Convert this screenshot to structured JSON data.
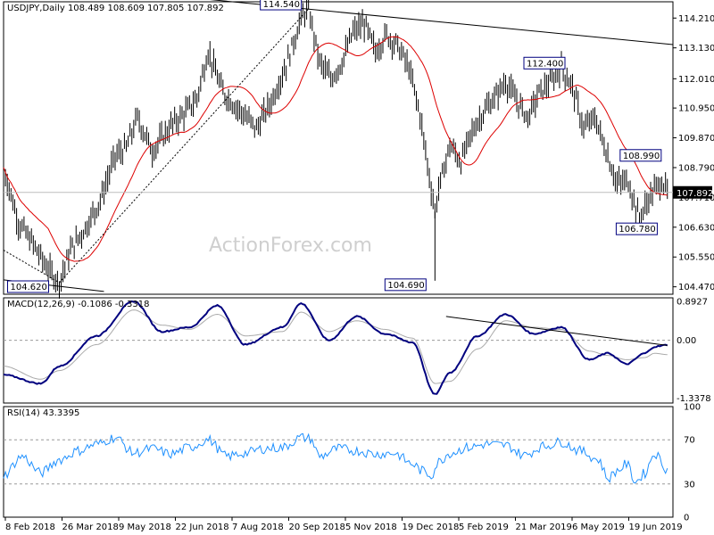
{
  "symbol": "USDJPY",
  "timeframe": "Daily",
  "header_quote": "108.489 108.609 107.805 107.892",
  "watermark": "ActionForex.com",
  "colors": {
    "price": "#000000",
    "ma": "#dd0000",
    "macd": "#00007f",
    "signal": "#aaaaaa",
    "rsi": "#1e90ff",
    "trend": "#000000"
  },
  "chart_data": [
    {
      "type": "candlestick",
      "title": "USDJPY,Daily  108.489 108.609 107.805 107.892",
      "overlay": "moving average (red)",
      "ylim": [
        104.2,
        114.8
      ],
      "y_ticks": [
        "114.210",
        "113.130",
        "112.010",
        "110.950",
        "109.870",
        "108.790",
        "107.710",
        "106.630",
        "105.550",
        "104.470"
      ],
      "x_labels": [
        "8 Feb 2018",
        "26 Mar 2018",
        "9 May 2018",
        "22 Jun 2018",
        "7 Aug 2018",
        "20 Sep 2018",
        "5 Nov 2018",
        "19 Dec 2018",
        "5 Feb 2019",
        "21 Mar 2019",
        "6 May 2019",
        "19 Jun 2019"
      ],
      "last_price": "107.892",
      "price_path": [
        {
          "d": 0,
          "p": 108.8
        },
        {
          "d": 8,
          "p": 106.8
        },
        {
          "d": 16,
          "p": 106.0
        },
        {
          "d": 24,
          "p": 105.1
        },
        {
          "d": 30,
          "p": 104.62
        },
        {
          "d": 36,
          "p": 105.8
        },
        {
          "d": 44,
          "p": 106.6
        },
        {
          "d": 52,
          "p": 107.6
        },
        {
          "d": 60,
          "p": 109.2
        },
        {
          "d": 66,
          "p": 109.5
        },
        {
          "d": 72,
          "p": 110.6
        },
        {
          "d": 80,
          "p": 109.4
        },
        {
          "d": 90,
          "p": 110.3
        },
        {
          "d": 98,
          "p": 110.8
        },
        {
          "d": 104,
          "p": 111.3
        },
        {
          "d": 110,
          "p": 113.0
        },
        {
          "d": 118,
          "p": 111.5
        },
        {
          "d": 128,
          "p": 110.8
        },
        {
          "d": 136,
          "p": 110.2
        },
        {
          "d": 144,
          "p": 111.2
        },
        {
          "d": 152,
          "p": 112.5
        },
        {
          "d": 160,
          "p": 114.2
        },
        {
          "d": 164,
          "p": 114.54
        },
        {
          "d": 170,
          "p": 112.6
        },
        {
          "d": 176,
          "p": 112.0
        },
        {
          "d": 182,
          "p": 112.6
        },
        {
          "d": 188,
          "p": 113.7
        },
        {
          "d": 194,
          "p": 114.0
        },
        {
          "d": 200,
          "p": 113.0
        },
        {
          "d": 206,
          "p": 113.6
        },
        {
          "d": 212,
          "p": 113.2
        },
        {
          "d": 218,
          "p": 112.4
        },
        {
          "d": 224,
          "p": 110.7
        },
        {
          "d": 228,
          "p": 108.9
        },
        {
          "d": 232,
          "p": 107.2
        },
        {
          "d": 234,
          "p": 108.0
        },
        {
          "d": 240,
          "p": 109.6
        },
        {
          "d": 246,
          "p": 109.0
        },
        {
          "d": 252,
          "p": 110.1
        },
        {
          "d": 258,
          "p": 110.8
        },
        {
          "d": 264,
          "p": 111.3
        },
        {
          "d": 270,
          "p": 111.9
        },
        {
          "d": 276,
          "p": 111.2
        },
        {
          "d": 282,
          "p": 110.6
        },
        {
          "d": 288,
          "p": 111.5
        },
        {
          "d": 294,
          "p": 111.9
        },
        {
          "d": 300,
          "p": 112.4
        },
        {
          "d": 306,
          "p": 111.7
        },
        {
          "d": 312,
          "p": 110.2
        },
        {
          "d": 318,
          "p": 110.6
        },
        {
          "d": 324,
          "p": 109.4
        },
        {
          "d": 330,
          "p": 108.2
        },
        {
          "d": 336,
          "p": 108.3
        },
        {
          "d": 342,
          "p": 106.9
        },
        {
          "d": 348,
          "p": 107.8
        },
        {
          "d": 354,
          "p": 108.3
        },
        {
          "d": 357,
          "p": 107.892
        }
      ],
      "annotations": [
        {
          "text": "114.540",
          "value": 114.54
        },
        {
          "text": "104.620",
          "value": 104.62
        },
        {
          "text": "104.690",
          "value": 104.69
        },
        {
          "text": "112.400",
          "value": 112.4
        },
        {
          "text": "108.990",
          "value": 108.99
        },
        {
          "text": "106.780",
          "value": 106.78
        }
      ],
      "grid": false
    },
    {
      "type": "line",
      "title": "MACD(12,26,9) -0.1086 -0.3318",
      "ylim": [
        -1.45,
        0.98
      ],
      "y_ticks": [
        "0.8927",
        "0.00",
        "-1.3378"
      ],
      "x": [
        0,
        20,
        30,
        50,
        70,
        85,
        100,
        115,
        130,
        150,
        160,
        175,
        190,
        205,
        220,
        232,
        240,
        255,
        270,
        285,
        300,
        315,
        325,
        335,
        345,
        350,
        357
      ],
      "series": [
        {
          "role": "macd",
          "values": [
            -0.8,
            -1.0,
            -0.6,
            0.1,
            0.9,
            0.2,
            0.3,
            0.8,
            -0.1,
            0.3,
            0.85,
            0.0,
            0.55,
            0.15,
            -0.05,
            -1.25,
            -0.75,
            0.1,
            0.6,
            0.15,
            0.3,
            -0.45,
            -0.3,
            -0.55,
            -0.3,
            -0.15,
            -0.1086
          ]
        },
        {
          "role": "signal",
          "values": [
            -0.6,
            -0.9,
            -0.7,
            -0.1,
            0.7,
            0.35,
            0.25,
            0.6,
            0.1,
            0.2,
            0.65,
            0.2,
            0.45,
            0.25,
            0.05,
            -1.0,
            -0.95,
            -0.2,
            0.45,
            0.3,
            0.25,
            -0.25,
            -0.35,
            -0.45,
            -0.4,
            -0.3,
            -0.3318
          ]
        }
      ],
      "trendline": [
        [
          238,
          0.55
        ],
        [
          357,
          -0.12
        ]
      ]
    },
    {
      "type": "line",
      "title": "RSI(14) 43.3395",
      "ylim": [
        0,
        100
      ],
      "y_ticks": [
        "100",
        "70",
        "30",
        "0"
      ],
      "x": [
        0,
        10,
        20,
        30,
        40,
        50,
        60,
        70,
        80,
        90,
        100,
        110,
        120,
        130,
        140,
        150,
        160,
        165,
        170,
        180,
        190,
        200,
        210,
        220,
        225,
        230,
        234,
        240,
        250,
        260,
        270,
        280,
        290,
        300,
        310,
        320,
        325,
        330,
        335,
        340,
        345,
        350,
        357
      ],
      "series": [
        {
          "role": "rsi",
          "values": [
            38,
            55,
            40,
            52,
            60,
            66,
            72,
            58,
            62,
            57,
            63,
            70,
            55,
            58,
            62,
            63,
            72,
            71,
            55,
            62,
            60,
            57,
            58,
            48,
            42,
            38,
            50,
            58,
            63,
            66,
            65,
            56,
            64,
            68,
            60,
            52,
            35,
            42,
            48,
            32,
            40,
            58,
            43.34
          ]
        }
      ]
    }
  ]
}
